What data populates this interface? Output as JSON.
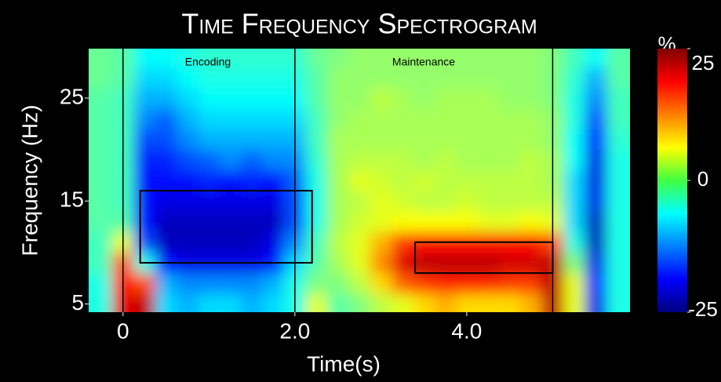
{
  "chart_data": {
    "type": "heatmap",
    "title": "Time Frequency Spectrogram",
    "x_label": "Time(s)",
    "y_label": "Frequency (Hz)",
    "xlim": [
      -0.4,
      5.9
    ],
    "ylim": [
      4.2,
      29.8
    ],
    "xticks": [
      0,
      {
        "value": 2,
        "label": "2.0"
      },
      {
        "value": 4,
        "label": "4.0"
      }
    ],
    "yticks": [
      5,
      15,
      25
    ],
    "x": [
      -0.25,
      0,
      0.25,
      0.5,
      0.75,
      1.0,
      1.25,
      1.5,
      1.75,
      2.0,
      2.25,
      2.5,
      2.75,
      3.0,
      3.25,
      3.5,
      3.75,
      4.0,
      4.25,
      4.5,
      4.75,
      5.0,
      5.25,
      5.5,
      5.75
    ],
    "y": [
      5,
      7,
      9,
      11,
      13,
      15,
      17,
      19,
      21,
      23,
      25,
      27,
      29
    ],
    "z": [
      [
        -5,
        20,
        22,
        -8,
        -10,
        -8,
        -8,
        -10,
        -8,
        -5,
        5,
        -2,
        0,
        3,
        5,
        8,
        10,
        8,
        8,
        8,
        10,
        22,
        5,
        -20,
        -5
      ],
      [
        -5,
        18,
        15,
        -10,
        -12,
        -12,
        -12,
        -12,
        -10,
        -5,
        0,
        0,
        3,
        8,
        14,
        16,
        17,
        17,
        17,
        16,
        16,
        22,
        5,
        -18,
        -5
      ],
      [
        -3,
        15,
        -5,
        -18,
        -20,
        -20,
        -20,
        -20,
        -18,
        -8,
        -2,
        2,
        5,
        12,
        20,
        22,
        22,
        22,
        22,
        21,
        21,
        22,
        0,
        -20,
        -5
      ],
      [
        -3,
        5,
        -15,
        -22,
        -22,
        -22,
        -22,
        -22,
        -20,
        -12,
        -3,
        3,
        5,
        10,
        16,
        18,
        18,
        18,
        18,
        18,
        18,
        15,
        -5,
        -22,
        -5
      ],
      [
        -2,
        -2,
        -18,
        -22,
        -22,
        -22,
        -22,
        -22,
        -22,
        -15,
        -5,
        2,
        4,
        5,
        6,
        6,
        6,
        6,
        5,
        5,
        6,
        5,
        -8,
        -22,
        -5
      ],
      [
        -2,
        -3,
        -18,
        -20,
        -20,
        -20,
        -20,
        -20,
        -20,
        -15,
        -5,
        2,
        3,
        5,
        4,
        3,
        3,
        4,
        3,
        3,
        3,
        3,
        -8,
        -20,
        -5
      ],
      [
        -2,
        -3,
        -18,
        -18,
        -18,
        -17,
        -18,
        -17,
        -18,
        -14,
        -5,
        2,
        5,
        4,
        3,
        4,
        3,
        3,
        3,
        3,
        3,
        2,
        -8,
        -20,
        -5
      ],
      [
        -2,
        -3,
        -17,
        -17,
        -15,
        -14,
        -12,
        -14,
        -12,
        -12,
        -4,
        2,
        3,
        3,
        3,
        2,
        3,
        2,
        2,
        2,
        3,
        2,
        -6,
        -20,
        -5
      ],
      [
        -2,
        -3,
        -15,
        -15,
        -12,
        -10,
        -10,
        -10,
        -10,
        -10,
        -3,
        2,
        2,
        2,
        2,
        2,
        2,
        2,
        2,
        2,
        2,
        1,
        -6,
        -18,
        -4
      ],
      [
        -2,
        -3,
        -12,
        -14,
        -10,
        -8,
        -8,
        -8,
        -8,
        -8,
        -3,
        1,
        2,
        2,
        2,
        2,
        2,
        2,
        2,
        2,
        2,
        1,
        -5,
        -15,
        -3
      ],
      [
        -2,
        -3,
        -10,
        -10,
        -8,
        -6,
        -6,
        -6,
        -6,
        -6,
        -2,
        1,
        1,
        3,
        2,
        1,
        2,
        2,
        2,
        1,
        1,
        0,
        -5,
        -12,
        -3
      ],
      [
        -1,
        -2,
        -8,
        -8,
        -6,
        -5,
        -5,
        -5,
        -5,
        -5,
        -2,
        1,
        1,
        1,
        1,
        1,
        1,
        1,
        1,
        1,
        1,
        0,
        -4,
        -10,
        -2
      ],
      [
        -1,
        -2,
        -6,
        -6,
        -5,
        -4,
        -4,
        -4,
        -4,
        -4,
        -1,
        0,
        1,
        1,
        1,
        1,
        1,
        1,
        1,
        1,
        1,
        0,
        -3,
        -6,
        -2
      ]
    ],
    "colormap": "jet",
    "clim": [
      -25,
      25
    ],
    "colorbar_label": "%",
    "colorbar_ticks": [
      -25,
      0,
      25
    ],
    "vlines": [
      0,
      2,
      5
    ],
    "boxes": [
      {
        "x": [
          0.2,
          2.2
        ],
        "y": [
          9,
          16
        ]
      },
      {
        "x": [
          3.4,
          5.0
        ],
        "y": [
          8,
          11
        ]
      }
    ],
    "annotations": [
      "Encoding",
      "Maintenance"
    ]
  }
}
